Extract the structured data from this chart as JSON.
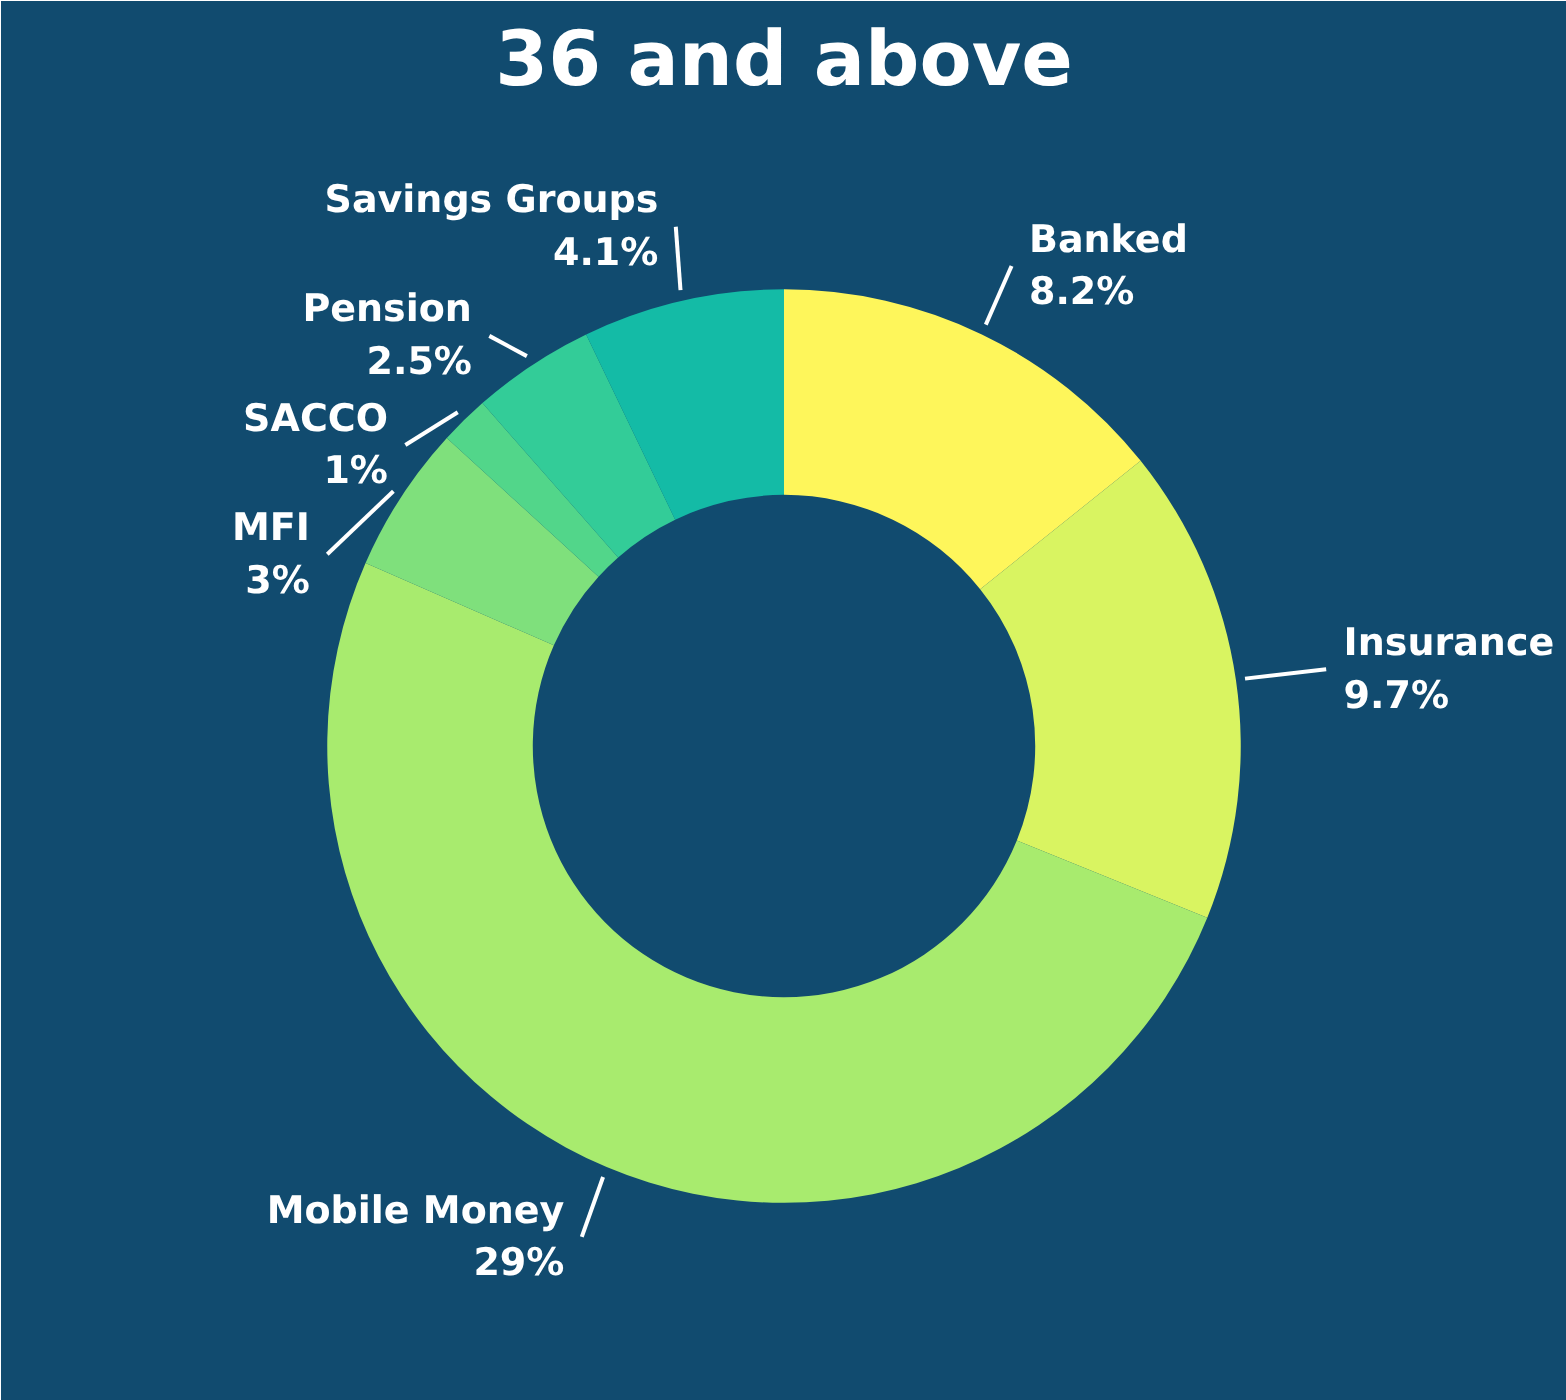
{
  "chart_data": {
    "type": "donut",
    "title": "36 and above",
    "categories": [
      "Banked",
      "Insurance",
      "Mobile Money",
      "MFI",
      "SACCO",
      "Pension",
      "Savings Groups"
    ],
    "values": [
      8.2,
      9.7,
      29,
      3,
      1,
      2.5,
      4.1
    ],
    "value_labels": [
      "8.2%",
      "9.7%",
      "29%",
      "3%",
      "1%",
      "2.5%",
      "4.1%"
    ],
    "colors": [
      "#fef65b",
      "#d9f461",
      "#a8eb6e",
      "#7fe07c",
      "#52d68a",
      "#33cc98",
      "#14bba6"
    ]
  }
}
